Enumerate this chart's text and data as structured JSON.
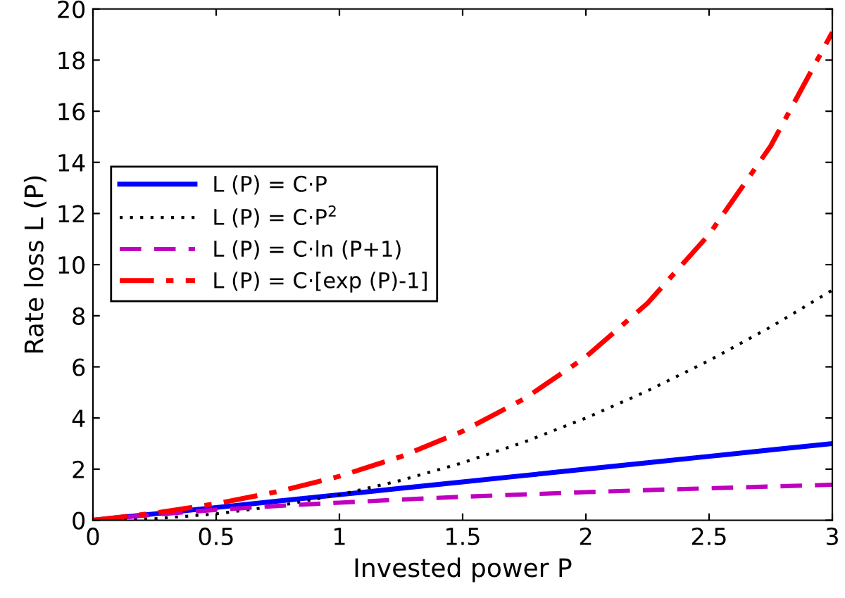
{
  "chart_data": {
    "type": "line",
    "xlabel": "Invested power P",
    "ylabel": "Rate loss L (P)",
    "x": [
      0,
      0.25,
      0.5,
      0.75,
      1,
      1.25,
      1.5,
      1.75,
      2,
      2.25,
      2.5,
      2.75,
      3
    ],
    "series": [
      {
        "name": "L (P) = C·P",
        "color": "#0000ff",
        "line_style": "solid",
        "values": [
          0,
          0.25,
          0.5,
          0.75,
          1,
          1.25,
          1.5,
          1.75,
          2,
          2.25,
          2.5,
          2.75,
          3
        ]
      },
      {
        "name": "L (P) = C·P$^{2}$",
        "color": "#000000",
        "line_style": "dotted",
        "values": [
          0,
          0.06,
          0.25,
          0.56,
          1,
          1.56,
          2.25,
          3.06,
          4,
          5.06,
          6.25,
          7.56,
          9
        ]
      },
      {
        "name": "L (P) = C·ln (P+1)",
        "color": "#bf00bf",
        "line_style": "dashed",
        "values": [
          0,
          0.22,
          0.41,
          0.56,
          0.69,
          0.81,
          0.92,
          1.01,
          1.1,
          1.18,
          1.25,
          1.32,
          1.39
        ]
      },
      {
        "name": "L (P) = C·[exp (P)-1]",
        "color": "#ff0000",
        "line_style": "dashdot",
        "values": [
          0,
          0.28,
          0.65,
          1.12,
          1.72,
          2.49,
          3.48,
          4.75,
          6.39,
          8.49,
          11.18,
          14.64,
          19.09
        ]
      }
    ],
    "xlim": [
      0,
      3
    ],
    "xticks": [
      0,
      0.5,
      1,
      1.5,
      2,
      2.5,
      3
    ],
    "ylim": [
      0,
      20
    ],
    "yticks": [
      0,
      2,
      4,
      6,
      8,
      10,
      12,
      14,
      16,
      18,
      20
    ],
    "grid": false,
    "legend": "left",
    "marker": "none"
  }
}
